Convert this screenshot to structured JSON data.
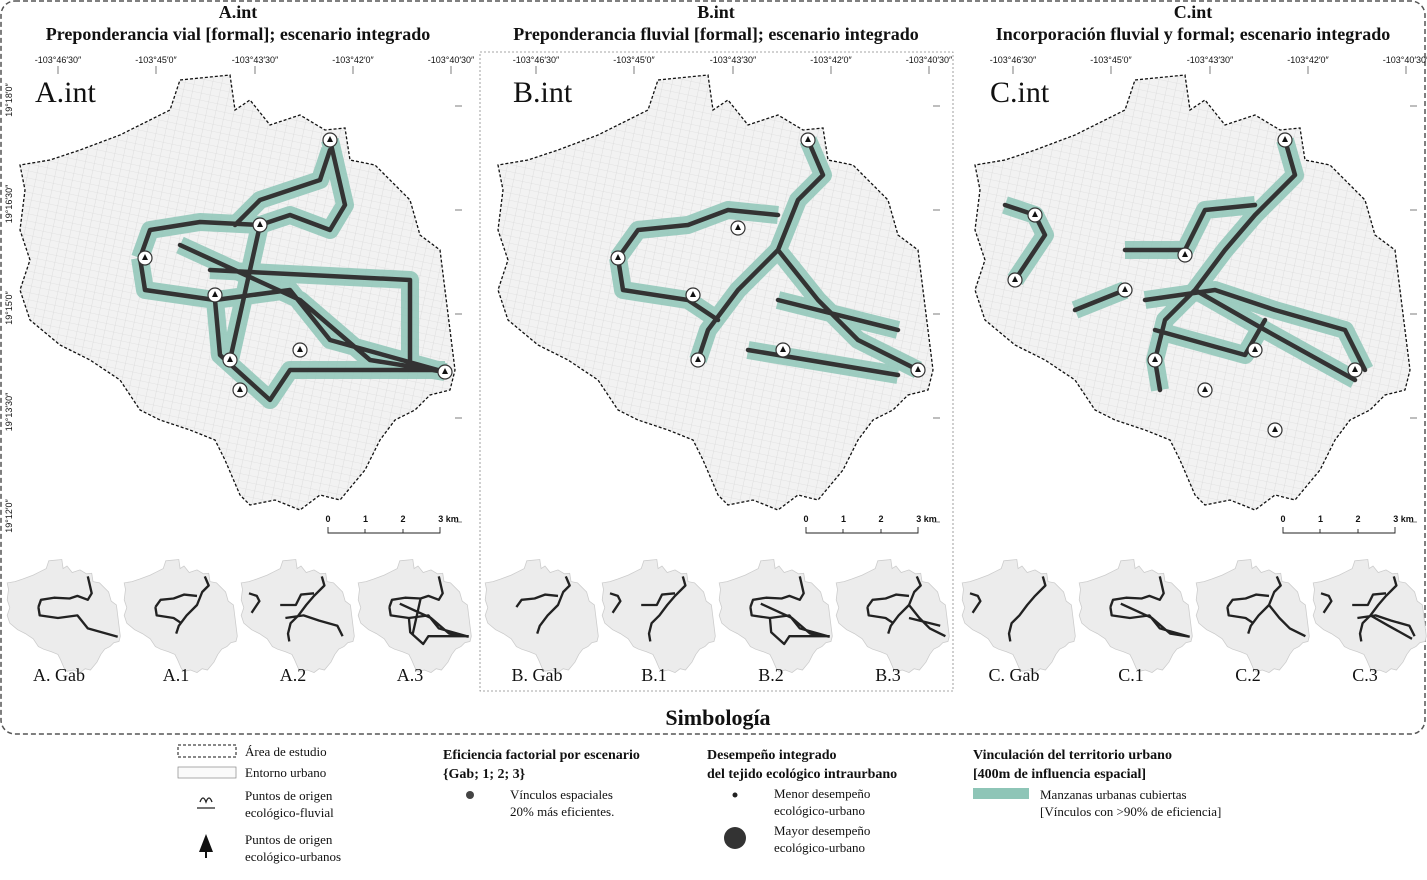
{
  "panels": [
    {
      "code": "A.int",
      "title": "Preponderancia vial [formal]; escenario integrado",
      "map_label": "A.int",
      "scenarios": [
        "A. Gab",
        "A.1",
        "A.2",
        "A.3"
      ]
    },
    {
      "code": "B.int",
      "title": "Preponderancia fluvial [formal]; escenario integrado",
      "map_label": "B.int",
      "scenarios": [
        "B. Gab",
        "B.1",
        "B.2",
        "B.3"
      ]
    },
    {
      "code": "C.int",
      "title": "Incorporación fluvial y formal; escenario integrado",
      "map_label": "C.int",
      "scenarios": [
        "C. Gab",
        "C.1",
        "C.2",
        "C.3"
      ]
    }
  ],
  "longitude_labels": [
    "-103°46′30″",
    "-103°45′0″",
    "-103°43′30″",
    "-103°42′0″",
    "-103°40′30″"
  ],
  "latitude_labels": [
    "19°18′0″",
    "19°16′30″",
    "19°15′0″",
    "19°13′30″",
    "19°12′0″"
  ],
  "scale_bar": [
    "0",
    "1",
    "2",
    "3 km"
  ],
  "legend": {
    "title": "Simbología",
    "study_area": "Área de estudio",
    "urban_context": "Entorno urbano",
    "fluvial_points": [
      "Puntos de origen",
      "ecológico-fluvial"
    ],
    "urban_points": [
      "Puntos de origen",
      "ecológico-urbanos"
    ],
    "efficiency": {
      "heading": [
        "Eficiencia factorial por escenario",
        "{Gab; 1; 2; 3}"
      ],
      "item": [
        "Vínculos espaciales",
        "20% más eficientes."
      ]
    },
    "performance": {
      "heading": [
        "Desempeño integrado",
        "del tejido ecológico intraurbano"
      ],
      "low": [
        "Menor desempeño",
        "ecológico-urbano"
      ],
      "high": [
        "Mayor desempeño",
        "ecológico-urbano"
      ]
    },
    "linkage": {
      "heading": [
        "Vinculación del territorio urbano",
        "[400m de influencia espacial]"
      ],
      "item": [
        "Manzanas urbanas cubiertas",
        "[Vínculos con >90% de eficiencia]"
      ]
    }
  }
}
